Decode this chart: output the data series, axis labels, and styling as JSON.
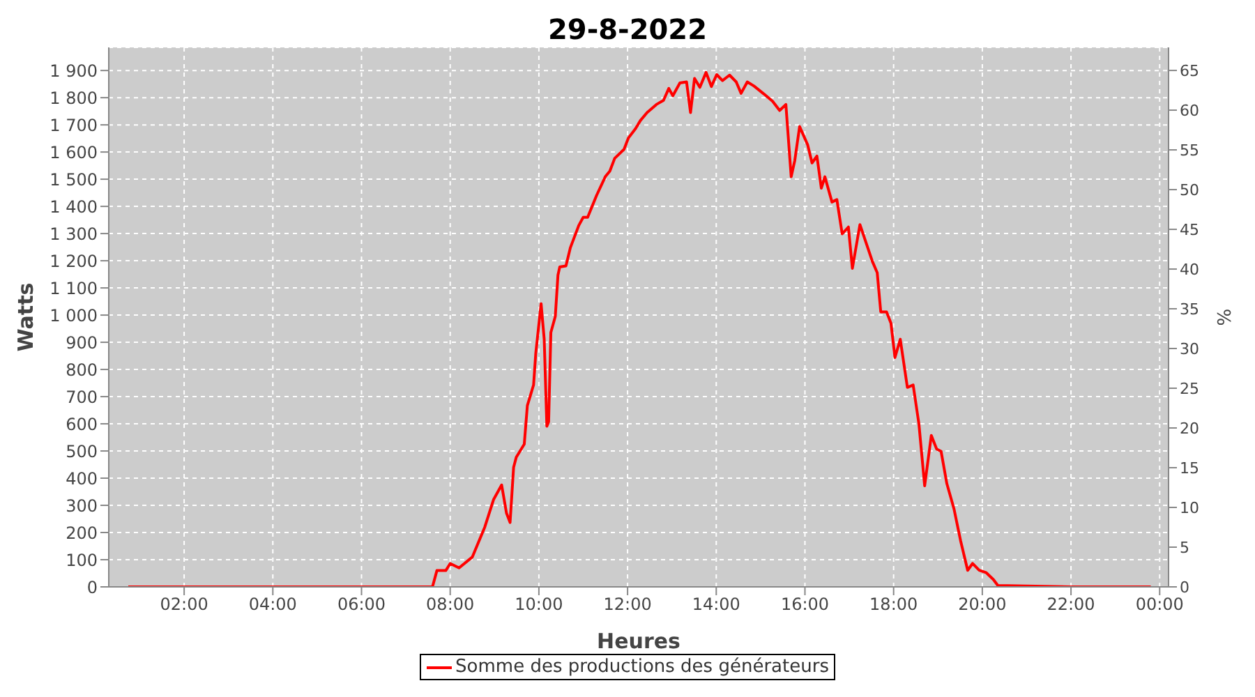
{
  "chart_data": {
    "type": "line",
    "title": "29-8-2022",
    "xlabel": "Heures",
    "ylabel": "Watts",
    "y2label": "%",
    "xlim": [
      0.3,
      24.2
    ],
    "xticks": [
      {
        "value": 2,
        "label": "02:00"
      },
      {
        "value": 4,
        "label": "04:00"
      },
      {
        "value": 6,
        "label": "06:00"
      },
      {
        "value": 8,
        "label": "08:00"
      },
      {
        "value": 10,
        "label": "10:00"
      },
      {
        "value": 12,
        "label": "12:00"
      },
      {
        "value": 14,
        "label": "14:00"
      },
      {
        "value": 16,
        "label": "16:00"
      },
      {
        "value": 18,
        "label": "18:00"
      },
      {
        "value": 20,
        "label": "20:00"
      },
      {
        "value": 22,
        "label": "22:00"
      },
      {
        "value": 24,
        "label": "00:00"
      }
    ],
    "ylim": [
      0,
      1985
    ],
    "yticks": [
      0,
      100,
      200,
      300,
      400,
      500,
      600,
      700,
      800,
      900,
      {
        "value": 1000,
        "label": "1 000"
      },
      {
        "value": 1100,
        "label": "1 100"
      },
      {
        "value": 1200,
        "label": "1 200"
      },
      {
        "value": 1300,
        "label": "1 300"
      },
      {
        "value": 1400,
        "label": "1 400"
      },
      {
        "value": 1500,
        "label": "1 500"
      },
      {
        "value": 1600,
        "label": "1 600"
      },
      {
        "value": 1700,
        "label": "1 700"
      },
      {
        "value": 1800,
        "label": "1 800"
      },
      {
        "value": 1900,
        "label": "1 900"
      }
    ],
    "y2lim": [
      0,
      67.9
    ],
    "y2ticks": [
      0,
      5,
      10,
      15,
      20,
      25,
      30,
      35,
      40,
      45,
      50,
      55,
      60,
      65
    ],
    "grid": true,
    "legend": "bottom",
    "marker": "none",
    "line_style": "solid",
    "series": [
      {
        "name": "Somme des productions des  générateurs",
        "color": "#ff0000",
        "x": [
          0.74,
          3.0,
          5.0,
          7.0,
          7.6,
          7.7,
          7.9,
          8.0,
          8.2,
          8.5,
          8.78,
          8.98,
          9.16,
          9.27,
          9.35,
          9.43,
          9.49,
          9.67,
          9.74,
          9.88,
          9.93,
          10.05,
          10.12,
          10.18,
          10.22,
          10.27,
          10.37,
          10.43,
          10.47,
          10.61,
          10.71,
          10.9,
          11.0,
          11.1,
          11.3,
          11.5,
          11.6,
          11.71,
          11.92,
          12.02,
          12.18,
          12.29,
          12.44,
          12.65,
          12.81,
          12.93,
          13.02,
          13.18,
          13.33,
          13.42,
          13.51,
          13.63,
          13.77,
          13.89,
          14.01,
          14.14,
          14.3,
          14.45,
          14.56,
          14.7,
          14.85,
          15.08,
          15.27,
          15.43,
          15.57,
          15.69,
          15.77,
          15.88,
          16.06,
          16.16,
          16.27,
          16.37,
          16.45,
          16.61,
          16.72,
          16.84,
          16.98,
          17.07,
          17.24,
          17.52,
          17.63,
          17.71,
          17.84,
          17.94,
          18.03,
          18.15,
          18.31,
          18.44,
          18.57,
          18.7,
          18.85,
          18.97,
          19.07,
          19.2,
          19.36,
          19.51,
          19.67,
          19.78,
          19.93,
          20.09,
          20.25,
          20.35,
          22.0,
          23.8
        ],
        "values": [
          0,
          0,
          0,
          0,
          0,
          60,
          60,
          86,
          70,
          110,
          220,
          322,
          375,
          271,
          237,
          440,
          477,
          525,
          667,
          743,
          860,
          1042,
          911,
          591,
          608,
          936,
          995,
          1147,
          1177,
          1181,
          1248,
          1330,
          1360,
          1360,
          1440,
          1510,
          1530,
          1577,
          1610,
          1652,
          1686,
          1716,
          1745,
          1775,
          1790,
          1834,
          1807,
          1854,
          1858,
          1745,
          1871,
          1838,
          1893,
          1841,
          1885,
          1863,
          1883,
          1858,
          1816,
          1858,
          1843,
          1813,
          1787,
          1753,
          1775,
          1509,
          1568,
          1694,
          1627,
          1560,
          1585,
          1467,
          1509,
          1416,
          1425,
          1299,
          1324,
          1172,
          1333,
          1198,
          1156,
          1012,
          1012,
          970,
          844,
          911,
          734,
          743,
          600,
          372,
          557,
          507,
          499,
          380,
          288,
          170,
          61,
          86,
          61,
          52,
          27,
          5,
          0,
          0
        ]
      }
    ]
  }
}
